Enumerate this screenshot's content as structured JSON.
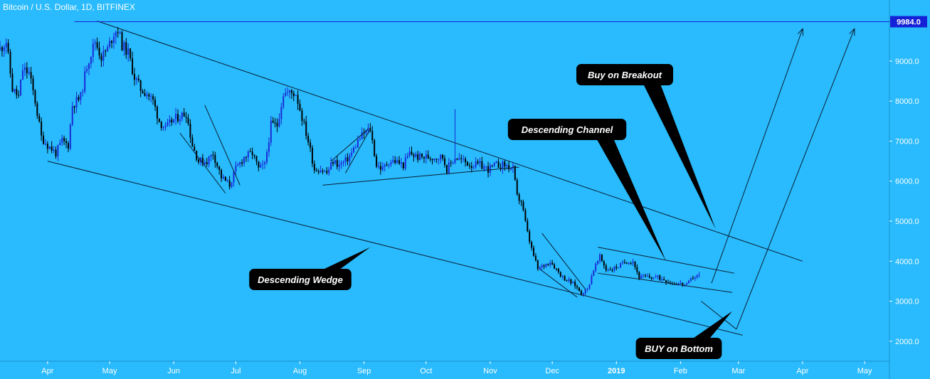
{
  "header": {
    "title": "Bitcoin / U.S. Dollar, 1D, BITFINEX"
  },
  "colors": {
    "background": "#29bbfd",
    "bullish_candle": "#1a2bd6",
    "bearish_candle": "#000000",
    "trendline": "#0b1e33",
    "horizontal_level": "#1521d6",
    "callout_bg": "#000000",
    "callout_text": "#ffffff"
  },
  "chart_data": {
    "type": "candlestick",
    "symbol": "Bitcoin / U.S. Dollar",
    "interval": "1D",
    "exchange": "BITFINEX",
    "yaxis": {
      "ticks": [
        2000,
        3000,
        4000,
        5000,
        6000,
        7000,
        8000,
        9000
      ],
      "tick_labels": [
        "2000.0",
        "3000.0",
        "4000.0",
        "5000.0",
        "6000.0",
        "7000.0",
        "8000.0",
        "9000.0"
      ],
      "range": [
        1500,
        10100
      ]
    },
    "xaxis": {
      "tick_labels": [
        "Apr",
        "May",
        "Jun",
        "Jul",
        "Aug",
        "Sep",
        "Oct",
        "Nov",
        "Dec",
        "2019",
        "Feb",
        "Mar",
        "Apr",
        "May"
      ],
      "tick_dates": [
        "2018-04-01",
        "2018-05-01",
        "2018-06-01",
        "2018-07-01",
        "2018-08-01",
        "2018-09-01",
        "2018-10-01",
        "2018-11-01",
        "2018-12-01",
        "2019-01-01",
        "2019-02-01",
        "2019-03-01",
        "2019-04-01",
        "2019-05-01"
      ],
      "range": [
        "2018-03-09",
        "2019-05-13"
      ]
    },
    "price_series": {
      "name": "BTCUSD",
      "points": [
        [
          "2018-03-09",
          9300
        ],
        [
          "2018-03-12",
          9500
        ],
        [
          "2018-03-15",
          8300
        ],
        [
          "2018-03-18",
          8100
        ],
        [
          "2018-03-20",
          8800
        ],
        [
          "2018-03-23",
          8700
        ],
        [
          "2018-03-26",
          8000
        ],
        [
          "2018-03-29",
          7100
        ],
        [
          "2018-04-01",
          6900
        ],
        [
          "2018-04-05",
          6700
        ],
        [
          "2018-04-08",
          7000
        ],
        [
          "2018-04-11",
          6900
        ],
        [
          "2018-04-13",
          7900
        ],
        [
          "2018-04-17",
          8100
        ],
        [
          "2018-04-20",
          8900
        ],
        [
          "2018-04-24",
          9500
        ],
        [
          "2018-04-27",
          9100
        ],
        [
          "2018-04-30",
          9300
        ],
        [
          "2018-05-03",
          9700
        ],
        [
          "2018-05-05",
          9800
        ],
        [
          "2018-05-07",
          9400
        ],
        [
          "2018-05-10",
          9200
        ],
        [
          "2018-05-13",
          8600
        ],
        [
          "2018-05-16",
          8300
        ],
        [
          "2018-05-19",
          8200
        ],
        [
          "2018-05-22",
          8000
        ],
        [
          "2018-05-25",
          7500
        ],
        [
          "2018-05-28",
          7300
        ],
        [
          "2018-05-31",
          7500
        ],
        [
          "2018-06-03",
          7600
        ],
        [
          "2018-06-07",
          7700
        ],
        [
          "2018-06-10",
          6900
        ],
        [
          "2018-06-13",
          6500
        ],
        [
          "2018-06-17",
          6500
        ],
        [
          "2018-06-20",
          6700
        ],
        [
          "2018-06-24",
          6100
        ],
        [
          "2018-06-28",
          5900
        ],
        [
          "2018-07-01",
          6300
        ],
        [
          "2018-07-05",
          6600
        ],
        [
          "2018-07-09",
          6700
        ],
        [
          "2018-07-12",
          6300
        ],
        [
          "2018-07-15",
          6400
        ],
        [
          "2018-07-18",
          7400
        ],
        [
          "2018-07-21",
          7400
        ],
        [
          "2018-07-24",
          8200
        ],
        [
          "2018-07-27",
          8200
        ],
        [
          "2018-07-30",
          8200
        ],
        [
          "2018-08-02",
          7600
        ],
        [
          "2018-08-05",
          7000
        ],
        [
          "2018-08-08",
          6300
        ],
        [
          "2018-08-11",
          6300
        ],
        [
          "2018-08-14",
          6200
        ],
        [
          "2018-08-17",
          6500
        ],
        [
          "2018-08-20",
          6400
        ],
        [
          "2018-08-23",
          6500
        ],
        [
          "2018-08-26",
          6700
        ],
        [
          "2018-08-29",
          7000
        ],
        [
          "2018-09-01",
          7200
        ],
        [
          "2018-09-04",
          7300
        ],
        [
          "2018-09-07",
          6400
        ],
        [
          "2018-09-10",
          6300
        ],
        [
          "2018-09-13",
          6500
        ],
        [
          "2018-09-16",
          6500
        ],
        [
          "2018-09-20",
          6400
        ],
        [
          "2018-09-23",
          6700
        ],
        [
          "2018-09-27",
          6600
        ],
        [
          "2018-10-01",
          6600
        ],
        [
          "2018-10-05",
          6600
        ],
        [
          "2018-10-09",
          6600
        ],
        [
          "2018-10-11",
          6300
        ],
        [
          "2018-10-15",
          6600
        ],
        [
          "2018-10-19",
          6500
        ],
        [
          "2018-10-23",
          6400
        ],
        [
          "2018-10-27",
          6400
        ],
        [
          "2018-10-31",
          6300
        ],
        [
          "2018-11-04",
          6400
        ],
        [
          "2018-11-08",
          6400
        ],
        [
          "2018-11-12",
          6300
        ],
        [
          "2018-11-14",
          5600
        ],
        [
          "2018-11-16",
          5500
        ],
        [
          "2018-11-19",
          4700
        ],
        [
          "2018-11-21",
          4300
        ],
        [
          "2018-11-24",
          3800
        ],
        [
          "2018-11-27",
          3900
        ],
        [
          "2018-11-30",
          4000
        ],
        [
          "2018-12-03",
          3800
        ],
        [
          "2018-12-06",
          3600
        ],
        [
          "2018-12-09",
          3500
        ],
        [
          "2018-12-12",
          3400
        ],
        [
          "2018-12-15",
          3200
        ],
        [
          "2018-12-18",
          3300
        ],
        [
          "2018-12-21",
          3800
        ],
        [
          "2018-12-24",
          4100
        ],
        [
          "2018-12-27",
          3800
        ],
        [
          "2018-12-30",
          3800
        ],
        [
          "2019-01-03",
          3900
        ],
        [
          "2019-01-06",
          4000
        ],
        [
          "2019-01-09",
          4000
        ],
        [
          "2019-01-12",
          3600
        ],
        [
          "2019-01-16",
          3600
        ],
        [
          "2019-01-20",
          3600
        ],
        [
          "2019-01-24",
          3550
        ],
        [
          "2019-01-28",
          3450
        ],
        [
          "2019-01-31",
          3450
        ],
        [
          "2019-02-04",
          3400
        ],
        [
          "2019-02-07",
          3600
        ],
        [
          "2019-02-10",
          3650
        ]
      ]
    },
    "horizontal_levels": [
      {
        "price": 9984.0,
        "label": "9984.0"
      }
    ],
    "trendlines": [
      {
        "name": "descending-wedge-upper",
        "from": [
          "2018-04-25",
          10000
        ],
        "to": [
          "2019-04-01",
          4000
        ]
      },
      {
        "name": "descending-wedge-lower",
        "from": [
          "2018-04-01",
          6500
        ],
        "to": [
          "2019-03-03",
          2150
        ]
      },
      {
        "name": "channel-top",
        "from": [
          "2018-12-23",
          4350
        ],
        "to": [
          "2019-02-27",
          3700
        ]
      },
      {
        "name": "channel-bottom",
        "from": [
          "2018-12-23",
          3700
        ],
        "to": [
          "2019-02-26",
          3220
        ]
      },
      {
        "name": "flag-june-upper",
        "from": [
          "2018-06-16",
          7900
        ],
        "to": [
          "2018-07-03",
          5900
        ]
      },
      {
        "name": "flag-june-lower",
        "from": [
          "2018-06-04",
          7200
        ],
        "to": [
          "2018-06-26",
          5700
        ]
      },
      {
        "name": "flag-august-upper",
        "from": [
          "2018-08-16",
          6500
        ],
        "to": [
          "2018-09-03",
          7300
        ]
      },
      {
        "name": "flag-august-diagonal",
        "from": [
          "2018-08-23",
          6200
        ],
        "to": [
          "2018-09-04",
          7300
        ]
      },
      {
        "name": "flag-august-lower",
        "from": [
          "2018-08-12",
          5900
        ],
        "to": [
          "2018-11-15",
          6350
        ]
      },
      {
        "name": "wedge-nov-upper",
        "from": [
          "2018-11-26",
          4700
        ],
        "to": [
          "2018-12-17",
          3300
        ]
      },
      {
        "name": "wedge-nov-lower",
        "from": [
          "2018-11-25",
          3800
        ],
        "to": [
          "2018-12-13",
          3100
        ]
      },
      {
        "name": "breakout-arrow",
        "from": [
          "2019-02-16",
          3450
        ],
        "to": [
          "2019-04-01",
          9800
        ]
      },
      {
        "name": "bottom-drop",
        "from": [
          "2019-02-11",
          3000
        ],
        "to": [
          "2019-02-28",
          2300
        ]
      },
      {
        "name": "bottom-arrow",
        "from": [
          "2019-02-28",
          2300
        ],
        "to": [
          "2019-04-26",
          9800
        ]
      }
    ],
    "annotations": [
      {
        "text": "Buy on Breakout",
        "anchor": [
          "2019-02-18",
          4800
        ]
      },
      {
        "text": "Descending  Channel",
        "anchor": [
          "2019-01-25",
          4000
        ]
      },
      {
        "text": "Descending Wedge",
        "anchor": [
          "2018-09-04",
          4350
        ]
      },
      {
        "text": "BUY on Bottom",
        "anchor": [
          "2019-02-26",
          2750
        ]
      }
    ]
  }
}
